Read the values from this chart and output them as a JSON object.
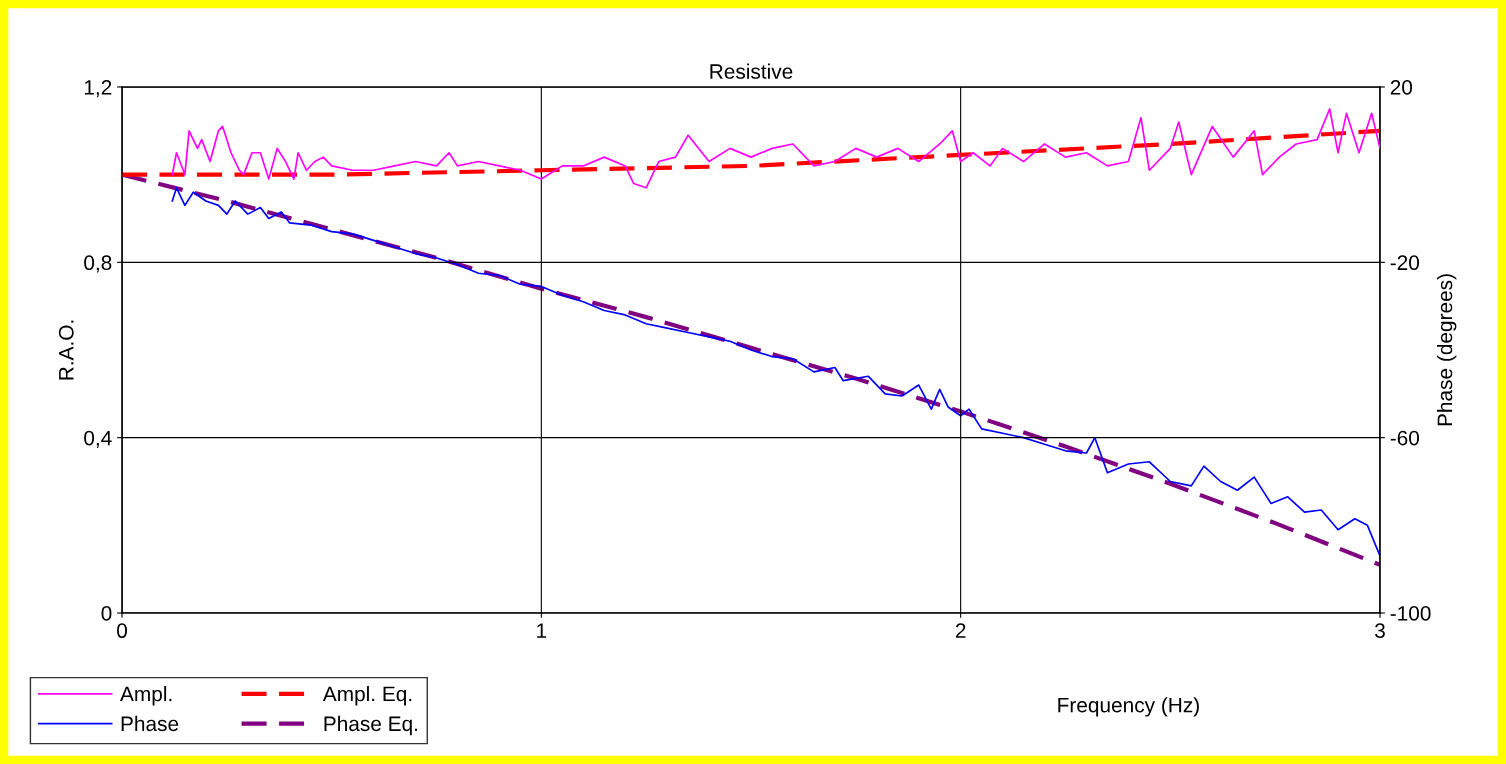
{
  "chart_data": {
    "type": "line",
    "title": "Resistive",
    "xlabel": "Frequency (Hz)",
    "ylabel": "R.A.O.",
    "y2label": "Phase (degrees)",
    "xlim": [
      0,
      3
    ],
    "xticks": [
      0,
      1,
      2,
      3
    ],
    "ylim": [
      0,
      1.2
    ],
    "yticks": [
      0,
      {
        "value": 0.4,
        "label": "0,4"
      },
      {
        "value": 0.8,
        "label": "0,8"
      },
      {
        "value": 1.2,
        "label": "1,2"
      }
    ],
    "y2lim": [
      -100,
      20
    ],
    "y2ticks": [
      -100,
      -60,
      -20,
      20
    ],
    "grid": true,
    "legend": "bottom left",
    "marker": "none",
    "series": [
      {
        "name": "Ampl.",
        "color": "#ff00ff",
        "line_style": "solid",
        "x": [
          0.12,
          0.13,
          0.15,
          0.16,
          0.18,
          0.19,
          0.21,
          0.23,
          0.24,
          0.26,
          0.28,
          0.29,
          0.31,
          0.33,
          0.35,
          0.37,
          0.39,
          0.41,
          0.42,
          0.44,
          0.46,
          0.48,
          0.5,
          0.55,
          0.6,
          0.65,
          0.7,
          0.75,
          0.78,
          0.8,
          0.85,
          0.9,
          0.95,
          1.0,
          1.05,
          1.1,
          1.15,
          1.2,
          1.22,
          1.25,
          1.28,
          1.32,
          1.35,
          1.4,
          1.45,
          1.5,
          1.55,
          1.6,
          1.65,
          1.7,
          1.75,
          1.8,
          1.85,
          1.9,
          1.95,
          1.98,
          2.0,
          2.03,
          2.07,
          2.1,
          2.15,
          2.2,
          2.25,
          2.3,
          2.35,
          2.4,
          2.43,
          2.45,
          2.5,
          2.52,
          2.55,
          2.6,
          2.65,
          2.7,
          2.72,
          2.76,
          2.8,
          2.85,
          2.88,
          2.9,
          2.92,
          2.95,
          2.98,
          3.0
        ],
        "values": [
          1.0,
          1.05,
          1.0,
          1.1,
          1.06,
          1.08,
          1.03,
          1.1,
          1.11,
          1.05,
          1.01,
          1.0,
          1.05,
          1.05,
          0.99,
          1.06,
          1.03,
          0.99,
          1.05,
          1.01,
          1.03,
          1.04,
          1.02,
          1.01,
          1.01,
          1.02,
          1.03,
          1.02,
          1.05,
          1.02,
          1.03,
          1.02,
          1.01,
          0.99,
          1.02,
          1.02,
          1.04,
          1.02,
          0.98,
          0.97,
          1.03,
          1.04,
          1.09,
          1.03,
          1.06,
          1.04,
          1.06,
          1.07,
          1.02,
          1.03,
          1.06,
          1.04,
          1.06,
          1.03,
          1.07,
          1.1,
          1.03,
          1.05,
          1.02,
          1.06,
          1.03,
          1.07,
          1.04,
          1.05,
          1.02,
          1.03,
          1.13,
          1.01,
          1.06,
          1.12,
          1.0,
          1.11,
          1.04,
          1.1,
          1.0,
          1.04,
          1.07,
          1.08,
          1.15,
          1.05,
          1.14,
          1.05,
          1.14,
          1.06
        ]
      },
      {
        "name": "Phase",
        "color": "#0000ff",
        "line_style": "solid",
        "axis": "y2",
        "x": [
          0.12,
          0.13,
          0.15,
          0.17,
          0.2,
          0.23,
          0.25,
          0.27,
          0.3,
          0.33,
          0.35,
          0.38,
          0.4,
          0.45,
          0.5,
          0.55,
          0.6,
          0.65,
          0.7,
          0.75,
          0.8,
          0.85,
          0.9,
          0.95,
          1.0,
          1.05,
          1.1,
          1.15,
          1.2,
          1.25,
          1.3,
          1.35,
          1.4,
          1.45,
          1.5,
          1.55,
          1.6,
          1.65,
          1.7,
          1.72,
          1.78,
          1.82,
          1.86,
          1.9,
          1.93,
          1.95,
          1.97,
          2.0,
          2.02,
          2.05,
          2.1,
          2.15,
          2.2,
          2.25,
          2.3,
          2.32,
          2.35,
          2.4,
          2.45,
          2.5,
          2.55,
          2.58,
          2.62,
          2.66,
          2.7,
          2.74,
          2.78,
          2.82,
          2.86,
          2.9,
          2.94,
          2.97,
          3.0
        ],
        "values": [
          -6,
          -3,
          -7,
          -4,
          -6,
          -7,
          -9,
          -6,
          -9,
          -7.5,
          -10,
          -8.5,
          -11,
          -11.5,
          -13,
          -13.5,
          -15,
          -16.5,
          -18,
          -19,
          -20.5,
          -22.5,
          -23,
          -25,
          -25.5,
          -27.5,
          -29,
          -31,
          -32,
          -34,
          -35,
          -36,
          -37,
          -38,
          -40,
          -41.5,
          -42,
          -45,
          -44,
          -47,
          -46,
          -50,
          -50.5,
          -48,
          -53.5,
          -49,
          -53,
          -55,
          -53.5,
          -58,
          -59,
          -60,
          -61.5,
          -63,
          -63.5,
          -60,
          -68,
          -66,
          -65.5,
          -70,
          -71,
          -66.5,
          -70,
          -72,
          -69,
          -75,
          -73.5,
          -77,
          -76.5,
          -81,
          -78.5,
          -80,
          -87
        ]
      },
      {
        "name": "Ampl. Eq.",
        "color": "#ff0000",
        "line_style": "dashed",
        "x": [
          0,
          0.5,
          1,
          1.5,
          2,
          2.5,
          3
        ],
        "values": [
          1.0,
          1.0,
          1.01,
          1.02,
          1.045,
          1.07,
          1.1
        ]
      },
      {
        "name": "Phase Eq.",
        "color": "#800080",
        "line_style": "dashed",
        "axis": "y2",
        "x": [
          0,
          0.25,
          0.5,
          0.75,
          1,
          1.25,
          1.5,
          1.75,
          2,
          2.25,
          2.5,
          2.75,
          3
        ],
        "values": [
          0,
          -6,
          -12.5,
          -19,
          -26,
          -32.5,
          -39.5,
          -46.5,
          -54,
          -62,
          -70.5,
          -79.5,
          -89
        ]
      }
    ]
  }
}
